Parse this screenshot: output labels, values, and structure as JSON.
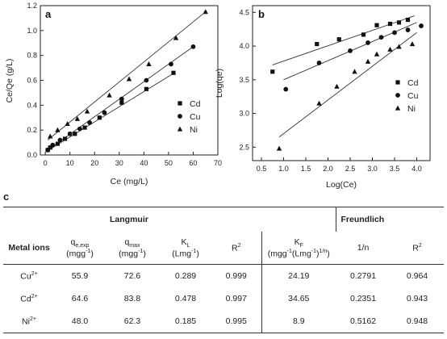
{
  "chart_data": [
    {
      "type": "scatter",
      "panel": "a",
      "xlabel": "Ce (mg/L)",
      "ylabel": "Ce/Qe (g/L)",
      "xlim": [
        -2,
        70
      ],
      "ylim": [
        0,
        1.2
      ],
      "xticks": [
        0,
        10,
        20,
        30,
        40,
        50,
        60,
        70
      ],
      "yticks": [
        0.0,
        0.2,
        0.4,
        0.6,
        0.8,
        1.0,
        1.2
      ],
      "xtick_labels": [
        "0",
        "10",
        "20",
        "30",
        "40",
        "50",
        "60",
        "70"
      ],
      "ytick_labels": [
        "0.0",
        "0.2",
        "0.4",
        "0.6",
        "0.8",
        "1.0",
        "1.2"
      ],
      "legend_position": "bottom-right",
      "series": [
        {
          "name": "Cd",
          "marker": "square",
          "x": [
            1,
            2,
            5,
            8,
            12,
            16,
            22,
            31,
            41,
            52
          ],
          "y": [
            0.04,
            0.06,
            0.09,
            0.13,
            0.17,
            0.22,
            0.3,
            0.42,
            0.53,
            0.66
          ],
          "fit": [
            [
              1,
              0.035
            ],
            [
              52,
              0.655
            ]
          ]
        },
        {
          "name": "Cu",
          "marker": "circle",
          "x": [
            1,
            3,
            6,
            10,
            14,
            18,
            24,
            31,
            41,
            51,
            60
          ],
          "y": [
            0.04,
            0.08,
            0.12,
            0.17,
            0.21,
            0.26,
            0.34,
            0.45,
            0.6,
            0.73,
            0.87
          ],
          "fit": [
            [
              1,
              0.04
            ],
            [
              60,
              0.87
            ]
          ]
        },
        {
          "name": "Ni",
          "marker": "triangle",
          "x": [
            2,
            5,
            9,
            13,
            17,
            26,
            34,
            42,
            53,
            65
          ],
          "y": [
            0.15,
            0.2,
            0.25,
            0.29,
            0.35,
            0.48,
            0.61,
            0.73,
            0.94,
            1.15
          ],
          "fit": [
            [
              1,
              0.12
            ],
            [
              65,
              1.15
            ]
          ]
        }
      ]
    },
    {
      "type": "scatter",
      "panel": "b",
      "xlabel": "Log(Ce)",
      "ylabel": "Log(qe)",
      "xlim": [
        0.3,
        4.3
      ],
      "ylim": [
        2.3,
        4.6
      ],
      "xticks": [
        0.5,
        1.0,
        1.5,
        2.0,
        2.5,
        3.0,
        3.5,
        4.0
      ],
      "yticks": [
        2.5,
        3.0,
        3.5,
        4.0,
        4.5
      ],
      "xtick_labels": [
        "0.5",
        "1.0",
        "1.5",
        "2.0",
        "2.5",
        "3.0",
        "3.5",
        "4.0"
      ],
      "ytick_labels": [
        "2.5",
        "3.0",
        "3.5",
        "4.0",
        "4.5"
      ],
      "legend_position": "right",
      "series": [
        {
          "name": "Cd",
          "marker": "square",
          "x": [
            0.75,
            1.75,
            2.25,
            2.8,
            3.1,
            3.4,
            3.6,
            3.8
          ],
          "y": [
            3.62,
            4.03,
            4.1,
            4.17,
            4.31,
            4.33,
            4.35,
            4.39
          ],
          "fit": [
            [
              0.75,
              3.72
            ],
            [
              3.95,
              4.45
            ]
          ]
        },
        {
          "name": "Cu",
          "marker": "circle",
          "x": [
            1.05,
            1.8,
            2.5,
            2.9,
            3.2,
            3.5,
            3.8,
            4.1
          ],
          "y": [
            3.36,
            3.75,
            3.93,
            4.05,
            4.13,
            4.2,
            4.24,
            4.3
          ],
          "fit": [
            [
              1.0,
              3.5
            ],
            [
              4.0,
              4.35
            ]
          ]
        },
        {
          "name": "Ni",
          "marker": "triangle",
          "x": [
            0.9,
            1.8,
            2.2,
            2.6,
            2.9,
            3.1,
            3.4,
            3.6,
            3.9
          ],
          "y": [
            2.48,
            3.15,
            3.4,
            3.62,
            3.77,
            3.88,
            3.95,
            3.99,
            4.03
          ],
          "fit": [
            [
              0.9,
              2.65
            ],
            [
              4.0,
              4.2
            ]
          ]
        }
      ]
    },
    {
      "type": "table",
      "panel": "c",
      "groups": {
        "langmuir": "Langmuir",
        "freundlich": "Freundlich"
      },
      "header_metal": "Metal ions",
      "header_qe": "q",
      "header_qe_sub": "e,exp",
      "header_qe_unit": "(mgg",
      "header_qe_unit_sup": "-1",
      "header_qe_unit_end": ")",
      "header_qmax": "q",
      "header_qmax_sub": "max",
      "header_qmax_unit": "(mgg",
      "header_qmax_unit_sup": "-1",
      "header_qmax_unit_end": ")",
      "header_kl": "K",
      "header_kl_sub": "L",
      "header_kl_unit": "(Lmg",
      "header_kl_unit_sup": "-1",
      "header_kl_unit_end": ")",
      "header_r2": "R",
      "header_r2_sup": "2",
      "header_kf": "K",
      "header_kf_sub": "F",
      "header_kf_unit": "(mgg",
      "header_kf_unit_sup1": "-1",
      "header_kf_unit_mid": "(Lmg",
      "header_kf_unit_sup2": "-1",
      "header_kf_unit_mid2": ")",
      "header_kf_unit_sup3": "1/n",
      "header_kf_unit_end": ")",
      "header_n": "1/n",
      "header_r2b": "R",
      "header_r2b_sup": "2",
      "rows": [
        {
          "metal": "Cu",
          "charge": "2+",
          "qe": "55.9",
          "qmax": "72.6",
          "kl": "0.289",
          "r2": "0.999",
          "kf": "24.19",
          "n": "0.2791",
          "r2b": "0.964"
        },
        {
          "metal": "Cd",
          "charge": "2+",
          "qe": "64.6",
          "qmax": "83.8",
          "kl": "0.478",
          "r2": "0.997",
          "kf": "34.65",
          "n": "0.2351",
          "r2b": "0.943"
        },
        {
          "metal": "Ni",
          "charge": "2+",
          "qe": "48.0",
          "qmax": "62.3",
          "kl": "0.185",
          "r2": "0.995",
          "kf": "8.9",
          "n": "0.5162",
          "r2b": "0.948"
        }
      ]
    }
  ]
}
